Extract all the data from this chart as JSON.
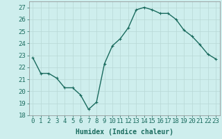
{
  "x": [
    0,
    1,
    2,
    3,
    4,
    5,
    6,
    7,
    8,
    9,
    10,
    11,
    12,
    13,
    14,
    15,
    16,
    17,
    18,
    19,
    20,
    21,
    22,
    23
  ],
  "y": [
    22.8,
    21.5,
    21.5,
    21.1,
    20.3,
    20.3,
    19.7,
    18.5,
    19.1,
    22.3,
    23.8,
    24.4,
    25.3,
    26.8,
    27.0,
    26.8,
    26.5,
    26.5,
    26.0,
    25.1,
    24.6,
    23.9,
    23.1,
    22.7
  ],
  "line_color": "#1a6b5e",
  "marker": "+",
  "marker_size": 3,
  "bg_color": "#ceeeed",
  "grid_color": "#b8d8d5",
  "xlabel": "Humidex (Indice chaleur)",
  "ylim": [
    18,
    27.5
  ],
  "yticks": [
    18,
    19,
    20,
    21,
    22,
    23,
    24,
    25,
    26,
    27
  ],
  "xticks": [
    0,
    1,
    2,
    3,
    4,
    5,
    6,
    7,
    8,
    9,
    10,
    11,
    12,
    13,
    14,
    15,
    16,
    17,
    18,
    19,
    20,
    21,
    22,
    23
  ],
  "xlabel_fontsize": 7,
  "tick_fontsize": 6.5,
  "line_width": 1.0
}
